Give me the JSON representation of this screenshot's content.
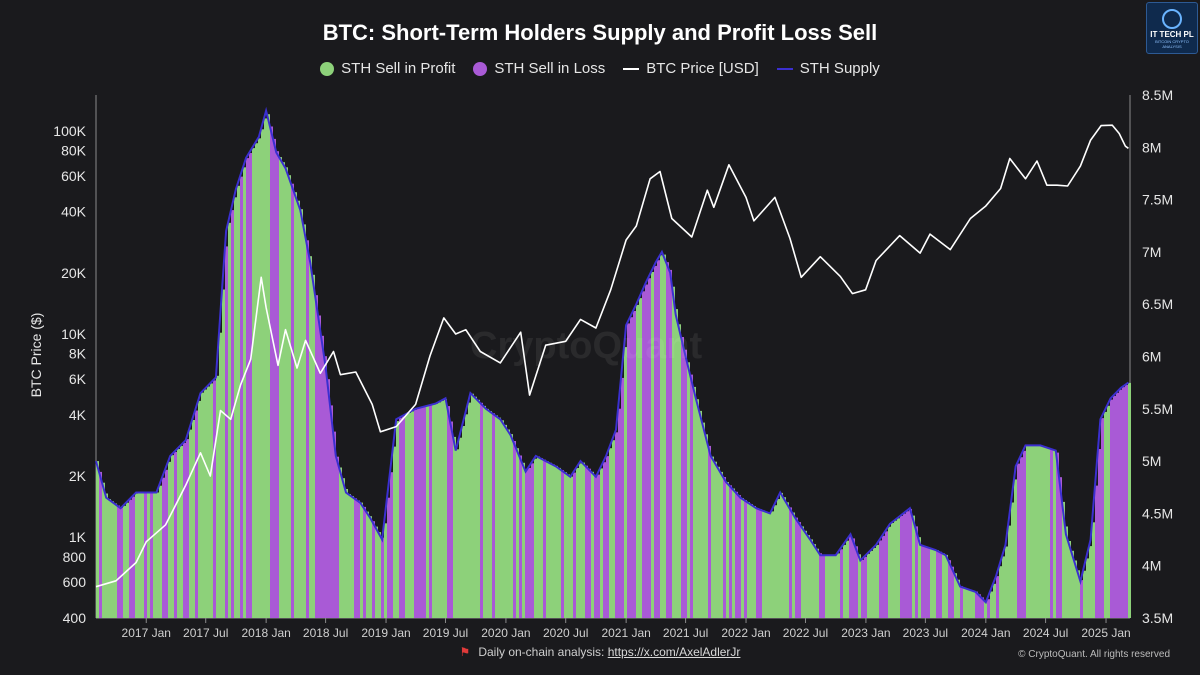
{
  "header": {
    "title": "BTC: Short-Term Holders Supply and Profit Loss Sell"
  },
  "legend": [
    {
      "label": "STH Sell in Profit",
      "kind": "dot",
      "color": "#8dd17a"
    },
    {
      "label": "STH Sell in Loss",
      "kind": "dot",
      "color": "#a95ad6"
    },
    {
      "label": "BTC Price [USD]",
      "kind": "line",
      "color": "#ffffff"
    },
    {
      "label": "STH Supply",
      "kind": "line",
      "color": "#3b2fd0"
    }
  ],
  "footer": {
    "text": "Daily on-chain analysis: ",
    "link": "https://x.com/AxelAdlerJr",
    "copyright": "© CryptoQuant. All rights reserved",
    "watermark": "CryptoQuant"
  },
  "logo": {
    "line1": "IT TECH PL",
    "line2": "BITCOIN CRYPTO",
    "line3": "ANALYSIS"
  },
  "chart_data": {
    "type": "area",
    "title": "BTC: Short-Term Holders Supply and Profit Loss Sell",
    "ylabel_left": "BTC Price ($)",
    "ylabel_right": "",
    "left_axis": {
      "scale": "log",
      "range": [
        400,
        150000
      ],
      "ticks": [
        {
          "value": 400,
          "label": "400"
        },
        {
          "value": 600,
          "label": "600"
        },
        {
          "value": 800,
          "label": "800"
        },
        {
          "value": 1000,
          "label": "1K"
        },
        {
          "value": 2000,
          "label": "2K"
        },
        {
          "value": 4000,
          "label": "4K"
        },
        {
          "value": 6000,
          "label": "6K"
        },
        {
          "value": 8000,
          "label": "8K"
        },
        {
          "value": 10000,
          "label": "10K"
        },
        {
          "value": 20000,
          "label": "20K"
        },
        {
          "value": 40000,
          "label": "40K"
        },
        {
          "value": 60000,
          "label": "60K"
        },
        {
          "value": 80000,
          "label": "80K"
        },
        {
          "value": 100000,
          "label": "100K"
        }
      ]
    },
    "right_axis": {
      "scale": "linear",
      "range": [
        3500000,
        8500000
      ],
      "ticks": [
        {
          "value": 3500000,
          "label": "3.5M"
        },
        {
          "value": 4000000,
          "label": "4M"
        },
        {
          "value": 4500000,
          "label": "4.5M"
        },
        {
          "value": 5000000,
          "label": "5M"
        },
        {
          "value": 5500000,
          "label": "5.5M"
        },
        {
          "value": 6000000,
          "label": "6M"
        },
        {
          "value": 6500000,
          "label": "6.5M"
        },
        {
          "value": 7000000,
          "label": "7M"
        },
        {
          "value": 7500000,
          "label": "7.5M"
        },
        {
          "value": 8000000,
          "label": "8M"
        },
        {
          "value": 8500000,
          "label": "8.5M"
        }
      ]
    },
    "x_axis": {
      "range": [
        "2016-08-01",
        "2025-03-15"
      ],
      "ticks": [
        {
          "date": "2017-01-01",
          "label": "2017 Jan"
        },
        {
          "date": "2017-07-01",
          "label": "2017 Jul"
        },
        {
          "date": "2018-01-01",
          "label": "2018 Jan"
        },
        {
          "date": "2018-07-01",
          "label": "2018 Jul"
        },
        {
          "date": "2019-01-01",
          "label": "2019 Jan"
        },
        {
          "date": "2019-07-01",
          "label": "2019 Jul"
        },
        {
          "date": "2020-01-01",
          "label": "2020 Jan"
        },
        {
          "date": "2020-07-01",
          "label": "2020 Jul"
        },
        {
          "date": "2021-01-01",
          "label": "2021 Jan"
        },
        {
          "date": "2021-07-01",
          "label": "2021 Jul"
        },
        {
          "date": "2022-01-01",
          "label": "2022 Jan"
        },
        {
          "date": "2022-07-01",
          "label": "2022 Jul"
        },
        {
          "date": "2023-01-01",
          "label": "2023 Jan"
        },
        {
          "date": "2023-07-01",
          "label": "2023 Jul"
        },
        {
          "date": "2024-01-01",
          "label": "2024 Jan"
        },
        {
          "date": "2024-07-01",
          "label": "2024 Jul"
        },
        {
          "date": "2025-01-01",
          "label": "2025 Jan"
        }
      ]
    },
    "grid": false,
    "legend_position": "top-center",
    "series": [
      {
        "name": "STH Supply",
        "axis": "right",
        "color": "#3b2fd0",
        "fill_profit": "#8dd17a",
        "fill_loss": "#a95ad6",
        "points": [
          [
            "2016-08-01",
            5000000
          ],
          [
            "2016-09-01",
            4650000
          ],
          [
            "2016-10-15",
            4550000
          ],
          [
            "2016-12-01",
            4700000
          ],
          [
            "2017-02-01",
            4700000
          ],
          [
            "2017-03-15",
            5050000
          ],
          [
            "2017-05-01",
            5200000
          ],
          [
            "2017-06-15",
            5650000
          ],
          [
            "2017-08-01",
            5800000
          ],
          [
            "2017-09-01",
            7200000
          ],
          [
            "2017-10-01",
            7600000
          ],
          [
            "2017-11-01",
            7900000
          ],
          [
            "2017-12-10",
            8100000
          ],
          [
            "2018-01-01",
            8350000
          ],
          [
            "2018-02-01",
            7950000
          ],
          [
            "2018-03-01",
            7800000
          ],
          [
            "2018-04-15",
            7400000
          ],
          [
            "2018-05-15",
            6900000
          ],
          [
            "2018-07-01",
            5900000
          ],
          [
            "2018-08-01",
            5050000
          ],
          [
            "2018-09-01",
            4700000
          ],
          [
            "2018-10-15",
            4600000
          ],
          [
            "2018-11-15",
            4450000
          ],
          [
            "2018-12-20",
            4250000
          ],
          [
            "2019-02-01",
            5400000
          ],
          [
            "2019-04-01",
            5500000
          ],
          [
            "2019-06-01",
            5550000
          ],
          [
            "2019-07-01",
            5600000
          ],
          [
            "2019-08-01",
            5100000
          ],
          [
            "2019-09-15",
            5650000
          ],
          [
            "2019-11-01",
            5500000
          ],
          [
            "2019-12-15",
            5400000
          ],
          [
            "2020-01-15",
            5250000
          ],
          [
            "2020-03-01",
            4900000
          ],
          [
            "2020-04-01",
            5050000
          ],
          [
            "2020-05-01",
            5000000
          ],
          [
            "2020-06-01",
            4950000
          ],
          [
            "2020-07-15",
            4850000
          ],
          [
            "2020-08-15",
            5000000
          ],
          [
            "2020-10-01",
            4850000
          ],
          [
            "2020-11-01",
            5050000
          ],
          [
            "2020-12-01",
            5300000
          ],
          [
            "2021-01-01",
            6300000
          ],
          [
            "2021-02-01",
            6500000
          ],
          [
            "2021-03-01",
            6700000
          ],
          [
            "2021-04-01",
            6900000
          ],
          [
            "2021-04-20",
            7000000
          ],
          [
            "2021-05-15",
            6800000
          ],
          [
            "2021-06-01",
            6400000
          ],
          [
            "2021-07-01",
            6000000
          ],
          [
            "2021-08-01",
            5600000
          ],
          [
            "2021-09-15",
            5050000
          ],
          [
            "2021-11-01",
            4800000
          ],
          [
            "2021-12-15",
            4650000
          ],
          [
            "2022-02-01",
            4550000
          ],
          [
            "2022-03-15",
            4500000
          ],
          [
            "2022-04-15",
            4700000
          ],
          [
            "2022-06-01",
            4450000
          ],
          [
            "2022-07-15",
            4250000
          ],
          [
            "2022-08-15",
            4100000
          ],
          [
            "2022-10-01",
            4100000
          ],
          [
            "2022-11-15",
            4300000
          ],
          [
            "2022-12-15",
            4050000
          ],
          [
            "2023-02-01",
            4200000
          ],
          [
            "2023-03-15",
            4400000
          ],
          [
            "2023-05-15",
            4550000
          ],
          [
            "2023-06-15",
            4200000
          ],
          [
            "2023-08-01",
            4150000
          ],
          [
            "2023-09-01",
            4100000
          ],
          [
            "2023-10-15",
            3800000
          ],
          [
            "2023-12-01",
            3750000
          ],
          [
            "2024-01-01",
            3650000
          ],
          [
            "2024-02-01",
            3900000
          ],
          [
            "2024-03-01",
            4200000
          ],
          [
            "2024-04-01",
            4950000
          ],
          [
            "2024-05-01",
            5150000
          ],
          [
            "2024-06-15",
            5150000
          ],
          [
            "2024-08-01",
            5100000
          ],
          [
            "2024-09-01",
            4300000
          ],
          [
            "2024-10-15",
            3850000
          ],
          [
            "2024-11-15",
            4250000
          ],
          [
            "2024-12-15",
            5400000
          ],
          [
            "2025-01-15",
            5600000
          ],
          [
            "2025-02-15",
            5700000
          ],
          [
            "2025-03-10",
            5750000
          ]
        ]
      },
      {
        "name": "BTC Price [USD]",
        "axis": "left",
        "color": "#ffffff",
        "points": [
          [
            "2016-08-01",
            570
          ],
          [
            "2016-10-01",
            610
          ],
          [
            "2016-12-01",
            750
          ],
          [
            "2017-01-01",
            950
          ],
          [
            "2017-03-01",
            1150
          ],
          [
            "2017-05-01",
            1800
          ],
          [
            "2017-06-15",
            2600
          ],
          [
            "2017-07-15",
            2000
          ],
          [
            "2017-08-15",
            4200
          ],
          [
            "2017-09-15",
            3800
          ],
          [
            "2017-10-15",
            5600
          ],
          [
            "2017-11-15",
            7500
          ],
          [
            "2017-12-17",
            19000
          ],
          [
            "2018-01-01",
            13500
          ],
          [
            "2018-02-06",
            7000
          ],
          [
            "2018-03-01",
            10500
          ],
          [
            "2018-04-05",
            6800
          ],
          [
            "2018-05-01",
            9300
          ],
          [
            "2018-06-15",
            6400
          ],
          [
            "2018-07-25",
            8200
          ],
          [
            "2018-08-15",
            6300
          ],
          [
            "2018-10-01",
            6500
          ],
          [
            "2018-11-20",
            4500
          ],
          [
            "2018-12-15",
            3300
          ],
          [
            "2019-02-01",
            3500
          ],
          [
            "2019-04-01",
            4500
          ],
          [
            "2019-05-15",
            7800
          ],
          [
            "2019-06-26",
            12000
          ],
          [
            "2019-08-01",
            10000
          ],
          [
            "2019-09-01",
            10500
          ],
          [
            "2019-10-15",
            8200
          ],
          [
            "2019-12-15",
            7200
          ],
          [
            "2020-02-15",
            10200
          ],
          [
            "2020-03-13",
            5000
          ],
          [
            "2020-05-01",
            8800
          ],
          [
            "2020-07-01",
            9200
          ],
          [
            "2020-08-15",
            11800
          ],
          [
            "2020-10-01",
            10700
          ],
          [
            "2020-11-15",
            16500
          ],
          [
            "2021-01-01",
            29000
          ],
          [
            "2021-02-01",
            34000
          ],
          [
            "2021-03-15",
            58000
          ],
          [
            "2021-04-14",
            63000
          ],
          [
            "2021-05-20",
            37000
          ],
          [
            "2021-07-20",
            30000
          ],
          [
            "2021-09-05",
            51000
          ],
          [
            "2021-09-25",
            42000
          ],
          [
            "2021-11-10",
            68000
          ],
          [
            "2022-01-01",
            47000
          ],
          [
            "2022-01-25",
            36000
          ],
          [
            "2022-03-30",
            47000
          ],
          [
            "2022-05-15",
            29500
          ],
          [
            "2022-06-18",
            19000
          ],
          [
            "2022-08-15",
            24000
          ],
          [
            "2022-10-15",
            19200
          ],
          [
            "2022-11-21",
            15800
          ],
          [
            "2022-12-31",
            16500
          ],
          [
            "2023-02-01",
            23000
          ],
          [
            "2023-04-14",
            30500
          ],
          [
            "2023-06-15",
            25000
          ],
          [
            "2023-07-15",
            31000
          ],
          [
            "2023-09-15",
            26000
          ],
          [
            "2023-11-15",
            37000
          ],
          [
            "2023-12-31",
            42500
          ],
          [
            "2024-02-15",
            52000
          ],
          [
            "2024-03-14",
            73000
          ],
          [
            "2024-05-01",
            58000
          ],
          [
            "2024-06-05",
            71000
          ],
          [
            "2024-07-05",
            54000
          ],
          [
            "2024-08-05",
            54000
          ],
          [
            "2024-09-06",
            53500
          ],
          [
            "2024-10-15",
            67000
          ],
          [
            "2024-11-15",
            90000
          ],
          [
            "2024-12-17",
            106000
          ],
          [
            "2025-01-20",
            106500
          ],
          [
            "2025-02-10",
            97000
          ],
          [
            "2025-03-01",
            84000
          ],
          [
            "2025-03-10",
            82000
          ]
        ]
      }
    ]
  }
}
